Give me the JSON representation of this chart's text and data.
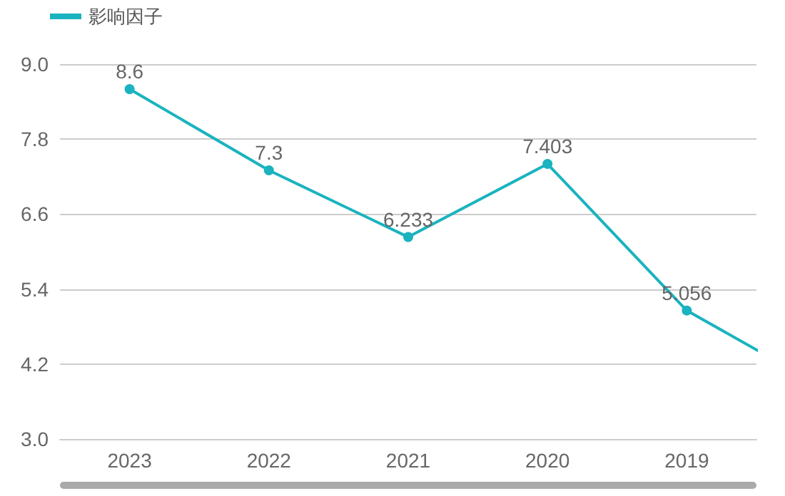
{
  "chart_data": {
    "type": "line",
    "categories": [
      "2023",
      "2022",
      "2021",
      "2020",
      "2019",
      null
    ],
    "series": [
      {
        "name": "影响因子",
        "color": "#1ab3bf",
        "values": [
          8.6,
          7.3,
          6.233,
          7.403,
          5.056,
          3.8
        ]
      }
    ],
    "ylim": [
      3,
      9
    ],
    "yticks": [
      {
        "value": 3,
        "label": "3.0"
      },
      {
        "value": 4.2,
        "label": "4.2"
      },
      {
        "value": 5.4,
        "label": "5.4"
      },
      {
        "value": 6.6,
        "label": "6.6"
      },
      {
        "value": 7.8,
        "label": "7.8"
      },
      {
        "value": 9,
        "label": "9.0"
      }
    ],
    "value_labels": [
      "8.6",
      "7.3",
      "6.233",
      "7.403",
      "5.056",
      null
    ],
    "grid": "y",
    "legend": "top left",
    "marker": "circle"
  }
}
